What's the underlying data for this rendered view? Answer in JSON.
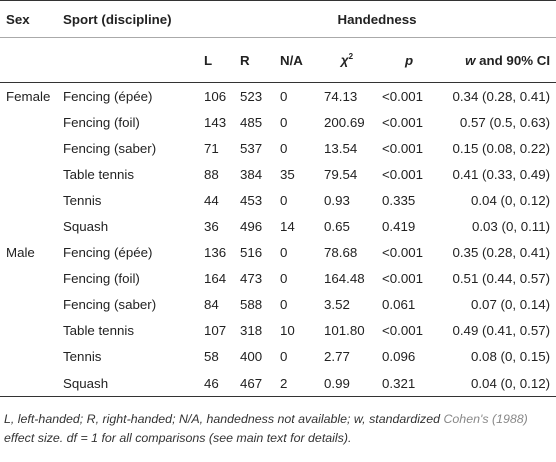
{
  "header": {
    "sex": "Sex",
    "sport": "Sport (discipline)",
    "handedness": "Handedness",
    "col_l": "L",
    "col_r": "R",
    "col_na": "N/A",
    "col_chi_symbol": "χ",
    "col_chi_sup": "2",
    "col_p": "p",
    "col_w": "w",
    "col_w_rest": " and 90% CI"
  },
  "rows": [
    {
      "sex": "Female",
      "sport": "Fencing (épée)",
      "l": "106",
      "r": "523",
      "na": "0",
      "chi": "74.13",
      "p": "<0.001",
      "w": "0.34 (0.28, 0.41)"
    },
    {
      "sex": "",
      "sport": "Fencing (foil)",
      "l": "143",
      "r": "485",
      "na": "0",
      "chi": "200.69",
      "p": "<0.001",
      "w": "0.57 (0.5, 0.63)"
    },
    {
      "sex": "",
      "sport": "Fencing (saber)",
      "l": "71",
      "r": "537",
      "na": "0",
      "chi": "13.54",
      "p": "<0.001",
      "w": "0.15 (0.08, 0.22)"
    },
    {
      "sex": "",
      "sport": "Table tennis",
      "l": "88",
      "r": "384",
      "na": "35",
      "chi": "79.54",
      "p": "<0.001",
      "w": "0.41 (0.33, 0.49)"
    },
    {
      "sex": "",
      "sport": "Tennis",
      "l": "44",
      "r": "453",
      "na": "0",
      "chi": "0.93",
      "p": "0.335",
      "w": "0.04 (0, 0.12)"
    },
    {
      "sex": "",
      "sport": "Squash",
      "l": "36",
      "r": "496",
      "na": "14",
      "chi": "0.65",
      "p": "0.419",
      "w": "0.03 (0, 0.11)"
    },
    {
      "sex": "Male",
      "sport": "Fencing (épée)",
      "l": "136",
      "r": "516",
      "na": "0",
      "chi": "78.68",
      "p": "<0.001",
      "w": "0.35 (0.28, 0.41)"
    },
    {
      "sex": "",
      "sport": "Fencing (foil)",
      "l": "164",
      "r": "473",
      "na": "0",
      "chi": "164.48",
      "p": "<0.001",
      "w": "0.51 (0.44, 0.57)"
    },
    {
      "sex": "",
      "sport": "Fencing (saber)",
      "l": "84",
      "r": "588",
      "na": "0",
      "chi": "3.52",
      "p": "0.061",
      "w": "0.07 (0, 0.14)"
    },
    {
      "sex": "",
      "sport": "Table tennis",
      "l": "107",
      "r": "318",
      "na": "10",
      "chi": "101.80",
      "p": "<0.001",
      "w": "0.49 (0.41, 0.57)"
    },
    {
      "sex": "",
      "sport": "Tennis",
      "l": "58",
      "r": "400",
      "na": "0",
      "chi": "2.77",
      "p": "0.096",
      "w": "0.08 (0, 0.15)"
    },
    {
      "sex": "",
      "sport": "Squash",
      "l": "46",
      "r": "467",
      "na": "2",
      "chi": "0.99",
      "p": "0.321",
      "w": "0.04 (0, 0.12)"
    }
  ],
  "footnote": {
    "part1": "L, left-handed; R, right-handed; N/A, handedness not available; w, standardized ",
    "ref": "Cohen's (1988)",
    "part2": " effect size. df = 1 for all comparisons (see main text for details)."
  }
}
